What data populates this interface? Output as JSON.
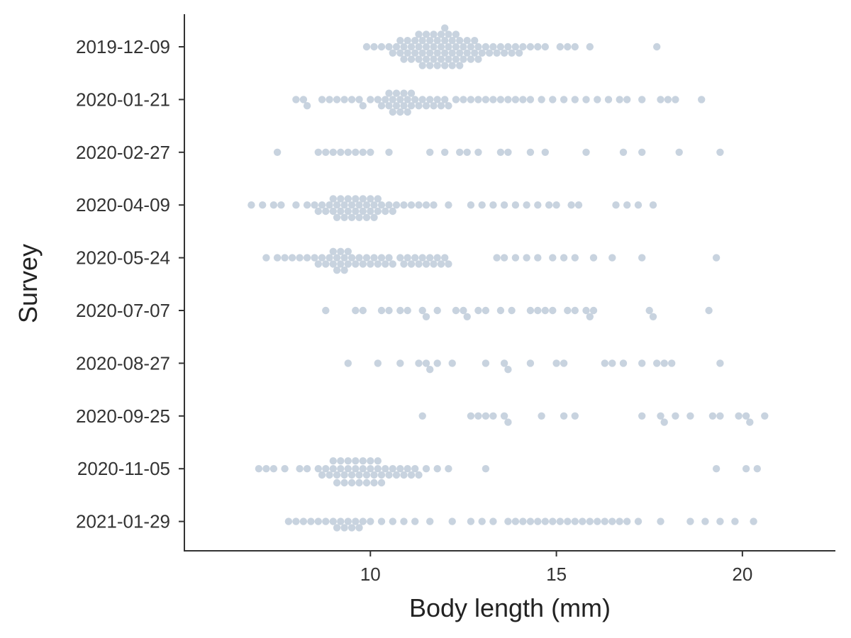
{
  "chart_data": {
    "type": "scatter",
    "subtype": "beeswarm",
    "title": "",
    "xlabel": "Body length (mm)",
    "ylabel": "Survey",
    "xlim": [
      5.0,
      22.5
    ],
    "xticks": [
      10,
      15,
      20
    ],
    "grid": false,
    "legend": "none",
    "point_color": "#4a6d96",
    "categories": [
      "2019-12-09",
      "2020-01-21",
      "2020-02-27",
      "2020-04-09",
      "2020-05-24",
      "2020-07-07",
      "2020-08-27",
      "2020-09-25",
      "2020-11-05",
      "2021-01-29"
    ],
    "series": [
      {
        "category": "2019-12-09",
        "values": [
          9.9,
          10.1,
          10.3,
          10.5,
          10.6,
          10.7,
          10.8,
          10.8,
          10.9,
          10.9,
          11.0,
          11.0,
          11.1,
          11.1,
          11.2,
          11.2,
          11.3,
          11.3,
          11.3,
          11.4,
          11.4,
          11.4,
          11.5,
          11.5,
          11.5,
          11.6,
          11.6,
          11.6,
          11.7,
          11.7,
          11.7,
          11.8,
          11.8,
          11.8,
          11.9,
          11.9,
          11.9,
          12.0,
          12.0,
          12.0,
          12.0,
          12.1,
          12.1,
          12.1,
          12.2,
          12.2,
          12.2,
          12.3,
          12.3,
          12.3,
          12.4,
          12.4,
          12.4,
          12.5,
          12.5,
          12.6,
          12.6,
          12.7,
          12.7,
          12.8,
          12.8,
          12.9,
          12.9,
          13.0,
          13.1,
          13.2,
          13.3,
          13.4,
          13.5,
          13.6,
          13.7,
          13.8,
          13.9,
          14.0,
          14.1,
          14.3,
          14.5,
          14.7,
          15.1,
          15.3,
          15.5,
          15.9,
          17.7
        ]
      },
      {
        "category": "2020-01-21",
        "values": [
          8.0,
          8.2,
          8.3,
          8.7,
          8.9,
          9.1,
          9.3,
          9.5,
          9.7,
          9.8,
          10.0,
          10.2,
          10.3,
          10.4,
          10.5,
          10.5,
          10.6,
          10.6,
          10.7,
          10.7,
          10.8,
          10.8,
          10.9,
          10.9,
          11.0,
          11.0,
          11.1,
          11.1,
          11.2,
          11.3,
          11.4,
          11.5,
          11.6,
          11.7,
          11.8,
          11.9,
          12.0,
          12.1,
          12.3,
          12.5,
          12.7,
          12.9,
          13.1,
          13.3,
          13.5,
          13.7,
          13.9,
          14.1,
          14.3,
          14.6,
          14.9,
          15.2,
          15.5,
          15.8,
          16.1,
          16.4,
          16.7,
          16.9,
          17.3,
          17.8,
          18.0,
          18.2,
          18.9
        ]
      },
      {
        "category": "2020-02-27",
        "values": [
          7.5,
          8.6,
          8.8,
          9.0,
          9.2,
          9.4,
          9.6,
          9.8,
          10.0,
          10.5,
          11.6,
          12.0,
          12.4,
          12.6,
          12.9,
          13.5,
          13.7,
          14.3,
          14.7,
          15.8,
          16.8,
          17.3,
          18.3,
          19.4
        ]
      },
      {
        "category": "2020-04-09",
        "values": [
          6.8,
          7.1,
          7.4,
          7.6,
          8.0,
          8.3,
          8.5,
          8.6,
          8.7,
          8.8,
          8.9,
          9.0,
          9.0,
          9.1,
          9.1,
          9.2,
          9.2,
          9.3,
          9.3,
          9.4,
          9.4,
          9.5,
          9.5,
          9.6,
          9.6,
          9.7,
          9.7,
          9.8,
          9.8,
          9.9,
          9.9,
          10.0,
          10.0,
          10.1,
          10.1,
          10.2,
          10.2,
          10.3,
          10.4,
          10.5,
          10.6,
          10.7,
          10.9,
          11.1,
          11.3,
          11.5,
          11.7,
          12.1,
          12.7,
          13.0,
          13.3,
          13.6,
          13.9,
          14.2,
          14.5,
          14.8,
          15.0,
          15.4,
          15.6,
          16.6,
          16.9,
          17.2,
          17.6
        ]
      },
      {
        "category": "2020-05-24",
        "values": [
          7.2,
          7.5,
          7.7,
          7.9,
          8.1,
          8.3,
          8.5,
          8.6,
          8.7,
          8.8,
          8.9,
          9.0,
          9.0,
          9.1,
          9.1,
          9.2,
          9.2,
          9.3,
          9.3,
          9.4,
          9.4,
          9.5,
          9.6,
          9.7,
          9.8,
          9.9,
          10.0,
          10.1,
          10.2,
          10.3,
          10.4,
          10.5,
          10.6,
          10.8,
          10.9,
          11.0,
          11.1,
          11.2,
          11.3,
          11.4,
          11.5,
          11.6,
          11.7,
          11.8,
          11.9,
          12.0,
          12.1,
          13.4,
          13.6,
          13.9,
          14.2,
          14.5,
          14.9,
          15.2,
          15.5,
          16.0,
          16.5,
          17.3,
          19.3
        ]
      },
      {
        "category": "2020-07-07",
        "values": [
          8.8,
          9.6,
          9.8,
          10.3,
          10.5,
          10.8,
          11.0,
          11.4,
          11.5,
          11.8,
          12.3,
          12.5,
          12.6,
          12.9,
          13.1,
          13.5,
          13.8,
          14.3,
          14.5,
          14.7,
          14.9,
          15.3,
          15.5,
          15.8,
          15.9,
          16.0,
          17.5,
          17.6,
          19.1
        ]
      },
      {
        "category": "2020-08-27",
        "values": [
          9.4,
          10.2,
          10.8,
          11.3,
          11.5,
          11.6,
          11.8,
          12.2,
          13.1,
          13.6,
          13.7,
          14.3,
          15.0,
          15.2,
          16.3,
          16.5,
          16.8,
          17.3,
          17.7,
          17.9,
          18.1,
          19.4
        ]
      },
      {
        "category": "2020-09-25",
        "values": [
          11.4,
          12.7,
          12.9,
          13.1,
          13.3,
          13.6,
          13.7,
          14.6,
          15.2,
          15.5,
          17.3,
          17.8,
          17.9,
          18.2,
          18.6,
          19.2,
          19.4,
          19.9,
          20.1,
          20.2,
          20.6
        ]
      },
      {
        "category": "2020-11-05",
        "values": [
          7.0,
          7.2,
          7.4,
          7.7,
          8.1,
          8.3,
          8.6,
          8.7,
          8.8,
          8.9,
          9.0,
          9.0,
          9.1,
          9.1,
          9.2,
          9.2,
          9.3,
          9.3,
          9.4,
          9.4,
          9.5,
          9.5,
          9.6,
          9.6,
          9.7,
          9.7,
          9.8,
          9.8,
          9.9,
          9.9,
          10.0,
          10.0,
          10.1,
          10.1,
          10.2,
          10.2,
          10.3,
          10.3,
          10.4,
          10.5,
          10.6,
          10.7,
          10.8,
          10.9,
          11.0,
          11.1,
          11.2,
          11.3,
          11.5,
          11.8,
          12.1,
          13.1,
          19.3,
          20.1,
          20.4
        ]
      },
      {
        "category": "2021-01-29",
        "values": [
          7.8,
          8.0,
          8.2,
          8.4,
          8.6,
          8.8,
          9.0,
          9.1,
          9.2,
          9.3,
          9.4,
          9.5,
          9.6,
          9.7,
          9.8,
          10.0,
          10.3,
          10.6,
          10.9,
          11.2,
          11.6,
          12.2,
          12.7,
          13.0,
          13.3,
          13.7,
          13.9,
          14.1,
          14.3,
          14.5,
          14.7,
          14.9,
          15.1,
          15.3,
          15.5,
          15.7,
          15.9,
          16.1,
          16.3,
          16.5,
          16.7,
          16.9,
          17.2,
          17.8,
          18.6,
          19.0,
          19.4,
          19.8,
          20.3
        ]
      }
    ]
  }
}
